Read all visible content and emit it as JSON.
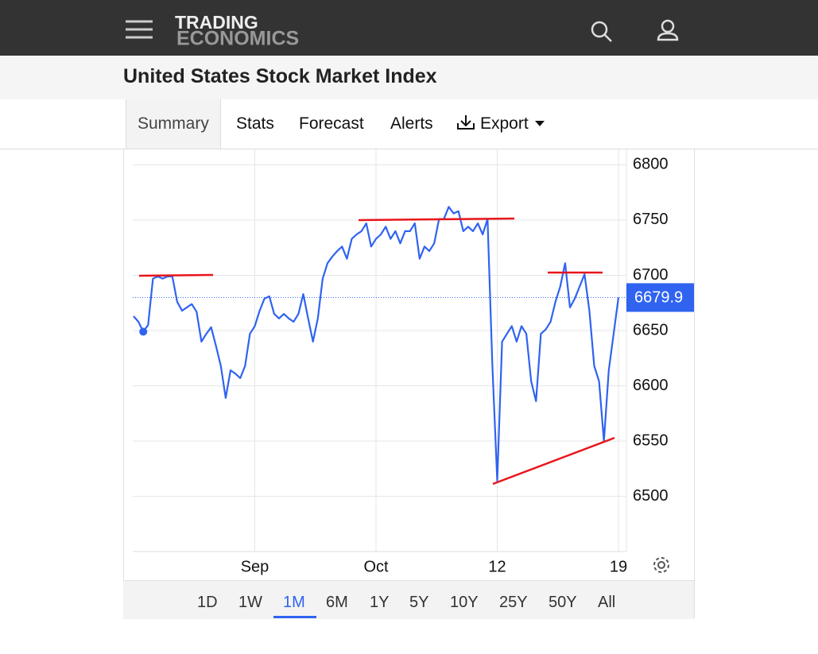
{
  "header": {
    "logo": [
      "TRADING",
      "ECONOMICS"
    ]
  },
  "page_title": "United States Stock Market Index",
  "tabs": [
    "Summary",
    "Stats",
    "Forecast",
    "Alerts",
    "Export"
  ],
  "active_tab": "Summary",
  "ranges": [
    "1D",
    "1W",
    "1M",
    "6M",
    "1Y",
    "5Y",
    "10Y",
    "25Y",
    "50Y",
    "All"
  ],
  "active_range": "1M",
  "chart_data": {
    "type": "line",
    "color": "#2f63f0",
    "grid": true,
    "ylim": [
      6450,
      6814
    ],
    "yticks": [
      6500,
      6550,
      6600,
      6650,
      6700,
      6750,
      6800
    ],
    "categories": [
      null,
      null,
      null,
      null,
      null,
      null,
      null,
      null,
      null,
      null,
      null,
      null,
      null,
      null,
      null,
      null,
      null,
      null,
      null,
      null,
      null,
      null,
      null,
      null,
      null,
      "Sep",
      null,
      null,
      null,
      null,
      null,
      null,
      null,
      null,
      null,
      null,
      null,
      null,
      null,
      null,
      null,
      null,
      null,
      null,
      null,
      null,
      null,
      null,
      null,
      null,
      "Oct",
      null,
      null,
      null,
      null,
      null,
      null,
      null,
      null,
      null,
      null,
      null,
      null,
      null,
      null,
      null,
      null,
      null,
      null,
      null,
      null,
      null,
      null,
      null,
      null,
      "12",
      null,
      null,
      null,
      null,
      null,
      null,
      null,
      null,
      null,
      null,
      null,
      null,
      null,
      null,
      null,
      null,
      null,
      null,
      null,
      null,
      null,
      null,
      null,
      null,
      "19"
    ],
    "values": [
      6663,
      6658,
      6649,
      6655,
      6697,
      6699,
      6697,
      6699,
      6699,
      6676,
      6668,
      6671,
      6674,
      6667,
      6640,
      6647,
      6653,
      6636,
      6618,
      6589,
      6614,
      6611,
      6607,
      6618,
      6647,
      6654,
      6668,
      6679,
      6681,
      6665,
      6661,
      6665,
      6661,
      6658,
      6665,
      6683,
      6661,
      6640,
      6661,
      6697,
      6711,
      6717,
      6722,
      6726,
      6715,
      6733,
      6737,
      6740,
      6747,
      6726,
      6733,
      6737,
      6744,
      6733,
      6740,
      6729,
      6740,
      6740,
      6747,
      6715,
      6726,
      6722,
      6729,
      6751,
      6751,
      6762,
      6756,
      6758,
      6740,
      6744,
      6740,
      6747,
      6737,
      6751,
      6618,
      6514,
      6640,
      6647,
      6654,
      6640,
      6654,
      6647,
      6604,
      6586,
      6647,
      6651,
      6658,
      6676,
      6690,
      6711,
      6671,
      6679,
      6690,
      6701,
      6668,
      6618,
      6604,
      6550,
      6614,
      6647,
      6679.9
    ]
  }
}
